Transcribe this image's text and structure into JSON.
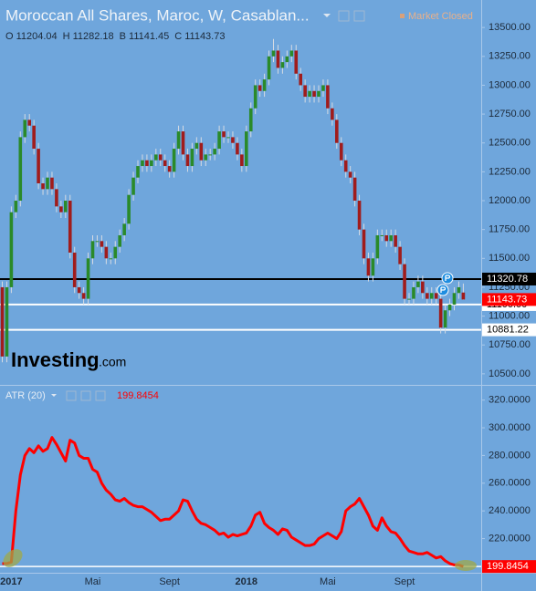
{
  "chart_data": [
    {
      "type": "candlestick",
      "title": "Moroccan All Shares, Maroc, W, Casablan...",
      "status": "Market Closed",
      "ohlc_labels": [
        "O",
        "H",
        "B",
        "C"
      ],
      "watermark": [
        "Investing",
        ".com"
      ],
      "up_color": "#2a8a2a",
      "down_color": "#a01c1c",
      "wick_color": "#d6dbe3",
      "categories": [
        null,
        null,
        "2017",
        null,
        null,
        null,
        null,
        null,
        null,
        null,
        null,
        null,
        null,
        null,
        null,
        null,
        null,
        null,
        null,
        null,
        "Mai",
        null,
        null,
        null,
        null,
        null,
        null,
        null,
        null,
        null,
        null,
        null,
        null,
        null,
        null,
        null,
        null,
        "Sept",
        null,
        null,
        null,
        null,
        null,
        null,
        null,
        null,
        null,
        null,
        null,
        null,
        null,
        null,
        null,
        null,
        "2018",
        null,
        null,
        null,
        null,
        null,
        null,
        null,
        null,
        null,
        null,
        null,
        null,
        null,
        null,
        null,
        null,
        null,
        "Mai",
        null,
        null,
        null,
        null,
        null,
        null,
        null,
        null,
        null,
        null,
        null,
        null,
        null,
        null,
        null,
        null,
        "Sept",
        null,
        null,
        null,
        null,
        null,
        null,
        null,
        null,
        null,
        null,
        null,
        null,
        null
      ],
      "open": [
        11250,
        10650,
        11250,
        11900,
        12000,
        12550,
        12700,
        12650,
        12450,
        12150,
        12100,
        12200,
        12100,
        11950,
        11900,
        12000,
        11550,
        11250,
        11200,
        11150,
        11500,
        11650,
        11650,
        11600,
        11500,
        11500,
        11600,
        11700,
        11800,
        12050,
        12200,
        12300,
        12350,
        12300,
        12350,
        12400,
        12350,
        12300,
        12250,
        12450,
        12600,
        12400,
        12300,
        12450,
        12500,
        12350,
        12400,
        12400,
        12450,
        12600,
        12550,
        12550,
        12500,
        12400,
        12300,
        12600,
        12800,
        13000,
        12950,
        13050,
        13250,
        13300,
        13150,
        13200,
        13250,
        13300,
        13100,
        13000,
        12900,
        12950,
        12900,
        12950,
        13000,
        12800,
        12700,
        12500,
        12350,
        12250,
        12200,
        12000,
        11750,
        11500,
        11350,
        11500,
        11700,
        11700,
        11650,
        11700,
        11600,
        11450,
        11150,
        11150,
        11250,
        11300,
        11200,
        11150,
        11200,
        11150,
        10900,
        11050,
        11100,
        11200,
        11204.04
      ],
      "high": [
        11300,
        11300,
        11950,
        12050,
        12600,
        12750,
        12750,
        12700,
        12500,
        12200,
        12250,
        12250,
        12150,
        12000,
        12050,
        12050,
        11600,
        11300,
        11250,
        11550,
        11700,
        11700,
        11700,
        11650,
        11550,
        11650,
        11750,
        11850,
        12100,
        12250,
        12350,
        12400,
        12400,
        12400,
        12450,
        12450,
        12400,
        12350,
        12500,
        12650,
        12650,
        12450,
        12500,
        12550,
        12550,
        12450,
        12450,
        12500,
        12650,
        12650,
        12600,
        12600,
        12550,
        12450,
        12650,
        12850,
        13050,
        13050,
        13100,
        13300,
        13400,
        13350,
        13250,
        13300,
        13350,
        13350,
        13150,
        13050,
        13000,
        13000,
        13000,
        13050,
        13050,
        12850,
        12750,
        12550,
        12400,
        12300,
        12250,
        12050,
        11800,
        11550,
        11550,
        11750,
        11750,
        11750,
        11750,
        11750,
        11650,
        11500,
        11200,
        11300,
        11350,
        11350,
        11250,
        11250,
        11250,
        11200,
        11100,
        11150,
        11250,
        11300,
        11282.18
      ],
      "low": [
        10600,
        10600,
        11200,
        11850,
        11950,
        12500,
        12600,
        12400,
        12100,
        12050,
        12050,
        12050,
        11900,
        11850,
        11850,
        11500,
        11200,
        11150,
        11100,
        11100,
        11450,
        11600,
        11550,
        11450,
        11450,
        11450,
        11550,
        11650,
        11750,
        12000,
        12150,
        12250,
        12250,
        12250,
        12300,
        12300,
        12250,
        12200,
        12200,
        12400,
        12350,
        12250,
        12250,
        12400,
        12300,
        12300,
        12350,
        12350,
        12400,
        12500,
        12500,
        12450,
        12350,
        12250,
        12250,
        12550,
        12750,
        12900,
        12900,
        13000,
        13200,
        13100,
        13100,
        13150,
        13200,
        13050,
        12950,
        12850,
        12850,
        12850,
        12850,
        12900,
        12750,
        12650,
        12450,
        12300,
        12200,
        12150,
        11950,
        11700,
        11450,
        11300,
        11300,
        11450,
        11650,
        11600,
        11600,
        11550,
        11400,
        11100,
        11100,
        11100,
        11200,
        11150,
        11100,
        11100,
        11100,
        10850,
        10850,
        11000,
        11050,
        11150,
        11141.45
      ],
      "close": [
        10650,
        11250,
        11900,
        12000,
        12550,
        12700,
        12650,
        12450,
        12150,
        12100,
        12200,
        12100,
        11950,
        11900,
        12000,
        11550,
        11250,
        11200,
        11150,
        11500,
        11650,
        11650,
        11600,
        11500,
        11500,
        11600,
        11700,
        11800,
        12050,
        12200,
        12300,
        12350,
        12300,
        12350,
        12400,
        12350,
        12300,
        12250,
        12450,
        12600,
        12400,
        12300,
        12450,
        12500,
        12350,
        12400,
        12400,
        12450,
        12600,
        12550,
        12550,
        12500,
        12400,
        12300,
        12600,
        12800,
        13000,
        12950,
        13050,
        13250,
        13300,
        13150,
        13200,
        13250,
        13300,
        13100,
        13000,
        12900,
        12950,
        12900,
        12950,
        13000,
        12800,
        12700,
        12500,
        12350,
        12250,
        12200,
        12000,
        11750,
        11500,
        11350,
        11500,
        11700,
        11700,
        11650,
        11700,
        11600,
        11450,
        11150,
        11150,
        11250,
        11300,
        11200,
        11150,
        11200,
        11150,
        10900,
        11050,
        11100,
        11200,
        11250,
        11143.73
      ],
      "last_color": "#ff0000",
      "hlines": [
        {
          "value": 11320.78,
          "color": "#000000"
        },
        {
          "value": {
            "value": 11100,
            "label": "11100.00"
          },
          "color": "#ffffff"
        },
        {
          "value": 10881.22,
          "color": "#ffffff"
        }
      ],
      "ylim": [
        10420,
        13675
      ],
      "yticks": [
        {
          "value": 10500,
          "label": "10500.00"
        },
        {
          "value": 10750,
          "label": "10750.00"
        },
        {
          "value": 11000,
          "label": "11000.00"
        },
        {
          "value": 11250,
          "label": "11250.00"
        },
        {
          "value": 11500,
          "label": "11500.00"
        },
        {
          "value": 11750,
          "label": "11750.00"
        },
        {
          "value": 12000,
          "label": "12000.00"
        },
        {
          "value": 12250,
          "label": "12250.00"
        },
        {
          "value": 12500,
          "label": "12500.00"
        },
        {
          "value": 12750,
          "label": "12750.00"
        },
        {
          "value": 13000,
          "label": "13000.00"
        },
        {
          "value": 13250,
          "label": "13250.00"
        },
        {
          "value": 13500,
          "label": "13500.00"
        }
      ]
    },
    {
      "type": "line",
      "title": "ATR (20)",
      "series": [
        {
          "color": "#ff0000",
          "values": [
            202,
            202,
            203,
            240,
            266,
            280,
            285,
            282,
            287,
            283,
            285,
            293,
            288,
            282,
            276,
            291,
            289,
            280,
            278,
            278,
            270,
            268,
            260,
            255,
            252,
            248,
            247,
            249,
            246,
            244,
            243,
            243,
            241,
            239,
            236,
            233,
            234,
            234,
            237,
            240,
            248,
            247,
            240,
            234,
            231,
            230,
            228,
            226,
            223,
            224,
            221,
            223,
            222,
            223,
            224,
            229,
            237,
            239,
            231,
            228,
            226,
            223,
            227,
            226,
            221,
            219,
            217,
            215,
            215,
            216,
            220,
            222,
            224,
            222,
            220,
            225,
            240,
            243,
            245,
            249,
            243,
            237,
            229,
            226,
            235,
            229,
            225,
            224,
            220,
            215,
            211,
            210,
            209,
            209,
            210,
            208,
            206,
            207,
            204,
            202,
            201,
            201,
            199.8454
          ]
        }
      ],
      "hline_color": "#ffffff",
      "ylim": [
        196,
        329
      ],
      "yticks": [
        {
          "value": 200,
          "label": "200.0000"
        },
        {
          "value": 220,
          "label": "220.0000"
        },
        {
          "value": 240,
          "label": "240.0000"
        },
        {
          "value": 260,
          "label": "260.0000"
        },
        {
          "value": 280,
          "label": "280.0000"
        },
        {
          "value": 300,
          "label": "300.0000"
        },
        {
          "value": 320,
          "label": "320.0000"
        }
      ]
    }
  ]
}
